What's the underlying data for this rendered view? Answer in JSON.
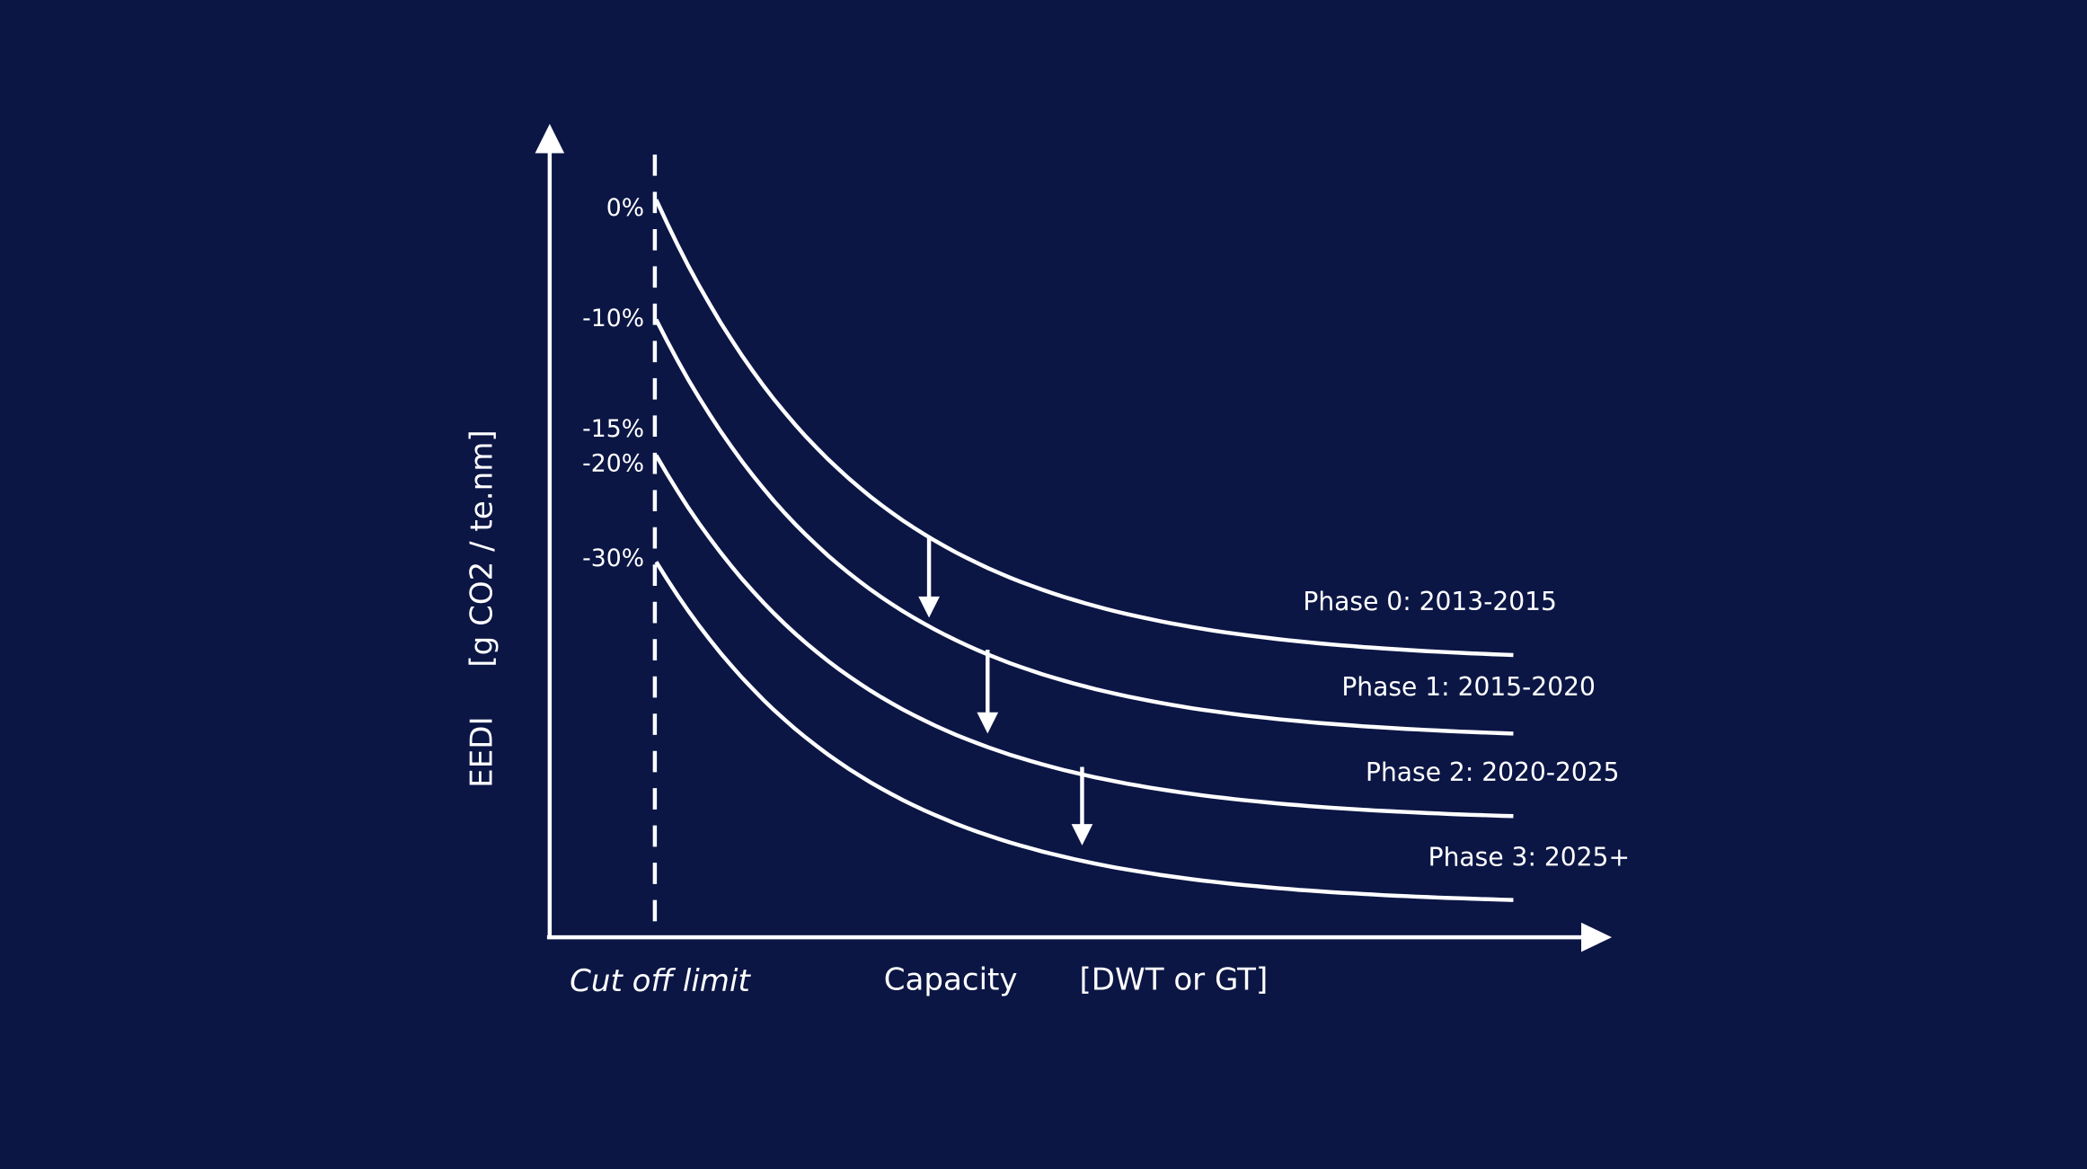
{
  "y_axis": {
    "title": "EEDI",
    "unit": "[g CO2 / te.nm]",
    "ticks": [
      "0%",
      "-10%",
      "-15%",
      "-20%",
      "-30%"
    ]
  },
  "x_axis": {
    "cutoff_label": "Cut off limit",
    "title": "Capacity",
    "unit": "[DWT or GT]"
  },
  "phases": [
    "Phase 0: 2013-2015",
    "Phase 1: 2015-2020",
    "Phase 2: 2020-2025",
    "Phase 3: 2025+"
  ]
}
